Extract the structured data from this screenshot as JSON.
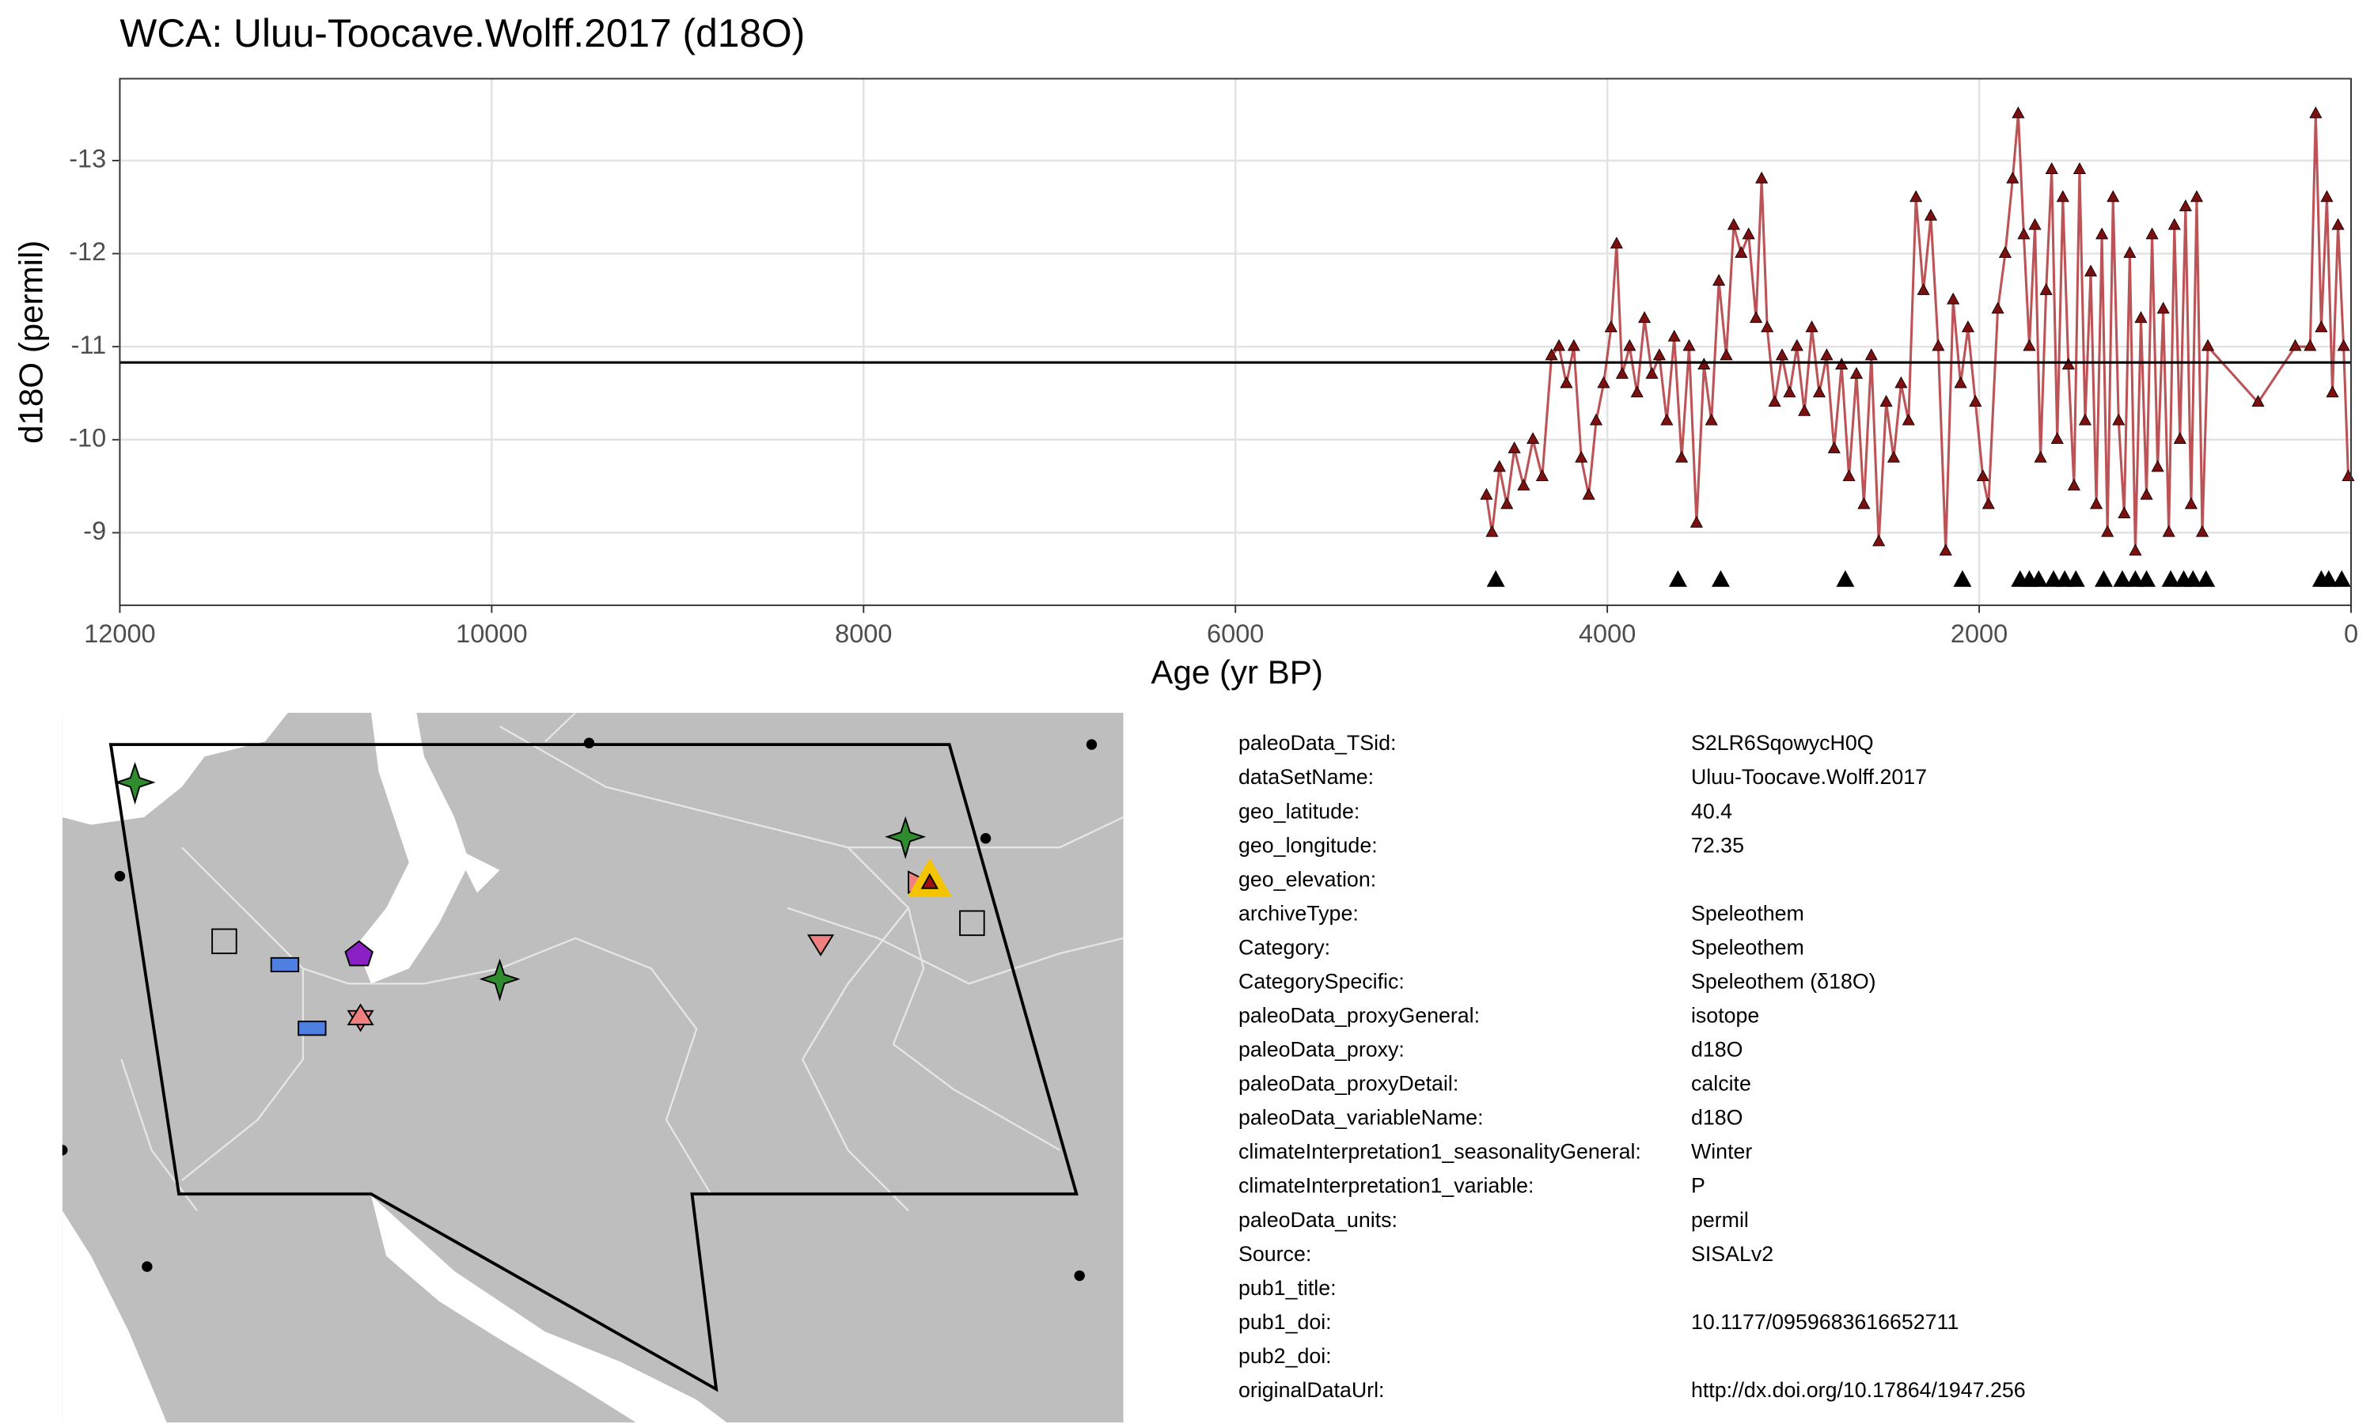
{
  "chart_data": {
    "type": "line",
    "title": "WCA: Uluu-Toocave.Wolff.2017 (d18O)",
    "x_label": "Age (yr BP)",
    "y_label": "d18O (permil)",
    "xlim": [
      12000,
      0
    ],
    "ylim": [
      -8.22,
      -13.88
    ],
    "xticks": [
      12000,
      10000,
      8000,
      6000,
      4000,
      2000,
      0
    ],
    "yticks": [
      -13,
      -12,
      -11,
      -10,
      -9
    ],
    "grid": true,
    "hline": -10.83,
    "series": [
      {
        "color": "#b0353a",
        "x": [
          4650,
          4620,
          4580,
          4540,
          4500,
          4450,
          4400,
          4350,
          4300,
          4260,
          4220,
          4180,
          4140,
          4100,
          4060,
          4020,
          3980,
          3950,
          3920,
          3880,
          3840,
          3800,
          3760,
          3720,
          3680,
          3640,
          3600,
          3560,
          3520,
          3480,
          3440,
          3400,
          3360,
          3320,
          3280,
          3240,
          3200,
          3170,
          3140,
          3100,
          3060,
          3020,
          2980,
          2940,
          2900,
          2860,
          2820,
          2780,
          2740,
          2700,
          2660,
          2620,
          2580,
          2540,
          2500,
          2460,
          2420,
          2380,
          2340,
          2300,
          2260,
          2220,
          2180,
          2140,
          2100,
          2060,
          2020,
          1980,
          1950,
          1900,
          1860,
          1820,
          1790,
          1760,
          1730,
          1700,
          1670,
          1640,
          1610,
          1580,
          1550,
          1520,
          1490,
          1460,
          1430,
          1400,
          1370,
          1340,
          1310,
          1280,
          1250,
          1220,
          1190,
          1160,
          1130,
          1100,
          1070,
          1040,
          1010,
          980,
          950,
          920,
          890,
          860,
          830,
          800,
          770,
          500,
          300,
          220,
          190,
          160,
          130,
          100,
          70,
          40,
          15
        ],
        "values": [
          -9.4,
          -9.0,
          -9.7,
          -9.3,
          -9.9,
          -9.5,
          -10.0,
          -9.6,
          -10.9,
          -11.0,
          -10.6,
          -11.0,
          -9.8,
          -9.4,
          -10.2,
          -10.6,
          -11.2,
          -12.1,
          -10.7,
          -11.0,
          -10.5,
          -11.3,
          -10.7,
          -10.9,
          -10.2,
          -11.1,
          -9.8,
          -11.0,
          -9.1,
          -10.8,
          -10.2,
          -11.7,
          -10.9,
          -12.3,
          -12.0,
          -12.2,
          -11.3,
          -12.8,
          -11.2,
          -10.4,
          -10.9,
          -10.5,
          -11.0,
          -10.3,
          -11.2,
          -10.5,
          -10.9,
          -9.9,
          -10.8,
          -9.6,
          -10.7,
          -9.3,
          -10.9,
          -8.9,
          -10.4,
          -9.8,
          -10.6,
          -10.2,
          -12.6,
          -11.6,
          -12.4,
          -11.0,
          -8.8,
          -11.5,
          -10.6,
          -11.2,
          -10.4,
          -9.6,
          -9.3,
          -11.4,
          -12.0,
          -12.8,
          -13.5,
          -12.2,
          -11.0,
          -12.3,
          -9.8,
          -11.6,
          -12.9,
          -10.0,
          -12.6,
          -10.8,
          -9.5,
          -12.9,
          -10.2,
          -11.8,
          -9.3,
          -12.2,
          -9.0,
          -12.6,
          -10.2,
          -9.2,
          -12.0,
          -8.8,
          -11.3,
          -9.4,
          -12.2,
          -9.7,
          -11.4,
          -9.0,
          -12.3,
          -10.0,
          -12.5,
          -9.3,
          -12.6,
          -9.0,
          -11.0,
          -10.4,
          -11.0,
          -11.0,
          -13.5,
          -11.2,
          -12.6,
          -10.5,
          -12.3,
          -11.0,
          -9.6
        ]
      }
    ],
    "chron_markers": {
      "x": [
        4600,
        3620,
        3390,
        2720,
        2090,
        1780,
        1730,
        1680,
        1600,
        1540,
        1480,
        1330,
        1230,
        1160,
        1100,
        970,
        900,
        850,
        780,
        160,
        120,
        50
      ],
      "level": -8.5
    }
  },
  "metadata": [
    {
      "key": "paleoData_TSid:",
      "value": "S2LR6SqowycH0Q"
    },
    {
      "key": "dataSetName:",
      "value": "Uluu-Toocave.Wolff.2017"
    },
    {
      "key": "geo_latitude:",
      "value": "40.4"
    },
    {
      "key": "geo_longitude:",
      "value": "72.35"
    },
    {
      "key": "geo_elevation:"
    },
    {
      "key": "archiveType:",
      "value": "Speleothem"
    },
    {
      "key": "Category:",
      "value": "Speleothem"
    },
    {
      "key": "CategorySpecific:",
      "value": "Speleothem (δ18O)"
    },
    {
      "key": "paleoData_proxyGeneral:",
      "value": "isotope"
    },
    {
      "key": "paleoData_proxy:",
      "value": "d18O"
    },
    {
      "key": "paleoData_proxyDetail:",
      "value": "calcite"
    },
    {
      "key": "paleoData_variableName:",
      "value": "d18O"
    },
    {
      "key": "climateInterpretation1_seasonalityGeneral:",
      "value": "Winter"
    },
    {
      "key": "climateInterpretation1_variable:",
      "value": "P"
    },
    {
      "key": "paleoData_units:",
      "value": "permil"
    },
    {
      "key": "Source:",
      "value": "SISALv2"
    },
    {
      "key": "pub1_title:"
    },
    {
      "key": "pub1_doi:",
      "value": "10.1177/0959683616652711"
    },
    {
      "key": "pub2_doi:"
    },
    {
      "key": "originalDataUrl:",
      "value": "http://dx.doi.org/10.17864/1947.256"
    }
  ]
}
